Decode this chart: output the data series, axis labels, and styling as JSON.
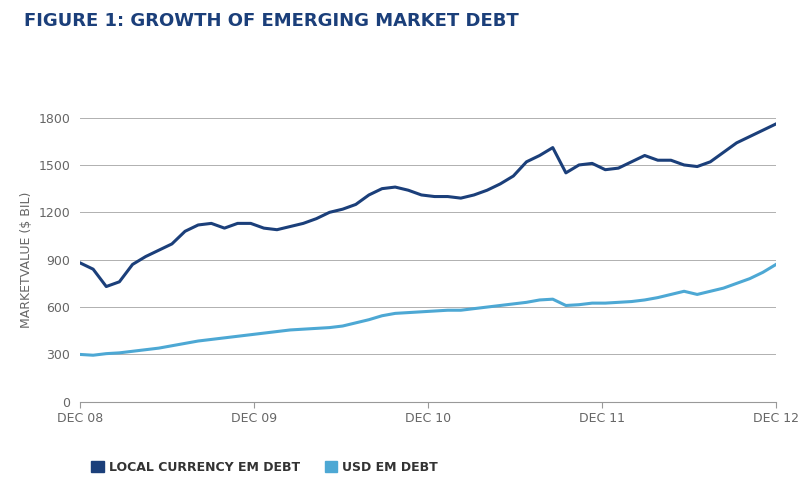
{
  "title": "FIGURE 1: GROWTH OF EMERGING MARKET DEBT",
  "ylabel": "MARKETVALUE ($ BIL)",
  "ylim": [
    0,
    1800
  ],
  "yticks": [
    0,
    300,
    600,
    900,
    1200,
    1500,
    1800
  ],
  "xtick_labels": [
    "DEC 08",
    "DEC 09",
    "DEC 10",
    "DEC 11",
    "DEC 12"
  ],
  "xtick_positions": [
    0,
    12,
    24,
    36,
    48
  ],
  "background_color": "#ffffff",
  "grid_color": "#b0b0b0",
  "local_color": "#1b3f7a",
  "usd_color": "#4da8d4",
  "local_label": "LOCAL CURRENCY EM DEBT",
  "usd_label": "USD EM DEBT",
  "local_data": [
    880,
    840,
    730,
    760,
    870,
    920,
    960,
    1000,
    1080,
    1120,
    1130,
    1100,
    1130,
    1130,
    1100,
    1090,
    1110,
    1130,
    1160,
    1200,
    1220,
    1250,
    1310,
    1350,
    1360,
    1340,
    1310,
    1300,
    1300,
    1290,
    1310,
    1340,
    1380,
    1430,
    1520,
    1560,
    1610,
    1450,
    1500,
    1510,
    1470,
    1480,
    1520,
    1560,
    1530,
    1530,
    1500,
    1490,
    1520,
    1580,
    1640,
    1680,
    1720,
    1760
  ],
  "usd_data": [
    300,
    295,
    305,
    310,
    320,
    330,
    340,
    355,
    370,
    385,
    395,
    405,
    415,
    425,
    435,
    445,
    455,
    460,
    465,
    470,
    480,
    500,
    520,
    545,
    560,
    565,
    570,
    575,
    580,
    580,
    590,
    600,
    610,
    620,
    630,
    645,
    650,
    610,
    615,
    625,
    625,
    630,
    635,
    645,
    660,
    680,
    700,
    680,
    700,
    720,
    750,
    780,
    820,
    870
  ],
  "title_color": "#1b3f7a",
  "title_fontsize": 13,
  "axis_fontsize": 9,
  "legend_fontsize": 9,
  "line_width": 2.2
}
